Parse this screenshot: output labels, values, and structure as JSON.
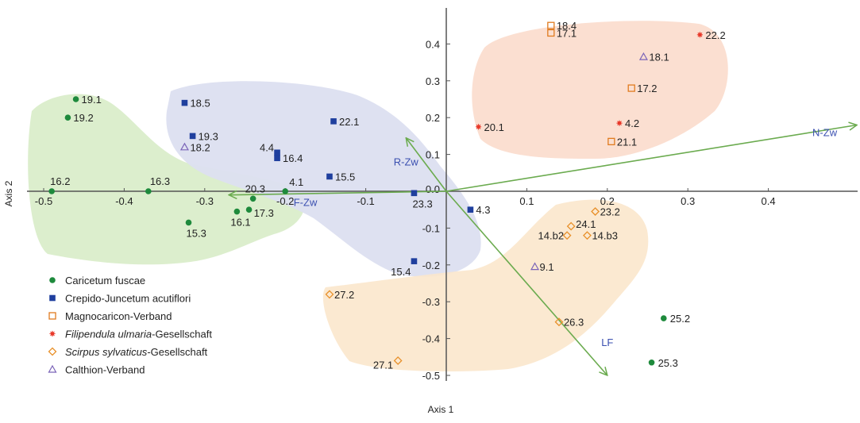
{
  "chart_data": {
    "type": "scatter",
    "xlabel": "Axis 1",
    "ylabel": "Axis 2",
    "xlim": [
      -0.5,
      0.5
    ],
    "ylim": [
      -0.5,
      0.5
    ],
    "x_ticks": [
      -0.5,
      -0.4,
      -0.3,
      -0.2,
      -0.1,
      0.1,
      0.2,
      0.3,
      0.4
    ],
    "x_tick_labels": [
      "-0.5",
      "-0.4",
      "-0.3",
      "-0.2",
      "-0.1",
      "0.1",
      "0.2",
      "0.3",
      "0.4"
    ],
    "y_ticks": [
      0.4,
      0.3,
      0.2,
      0.1,
      -0.1,
      -0.2,
      -0.3,
      -0.4,
      -0.5
    ],
    "y_tick_labels": [
      "0.4",
      "0.3",
      "0.2",
      "0.1",
      "-0.1",
      "-0.2",
      "-0.3",
      "-0.4",
      "-0.5"
    ],
    "origin_label": "0.0",
    "grid": false,
    "legend_position": "bottom-left",
    "series": [
      {
        "name": "Caricetum fuscae",
        "marker": "circle",
        "color": "#1e8a3c",
        "hull_color": "#d6ebc4",
        "points": [
          {
            "label": "19.1",
            "x": -0.46,
            "y": 0.25
          },
          {
            "label": "19.2",
            "x": -0.47,
            "y": 0.2
          },
          {
            "label": "16.2",
            "x": -0.49,
            "y": 0.0
          },
          {
            "label": "16.3",
            "x": -0.37,
            "y": 0.0
          },
          {
            "label": "20.3",
            "x": -0.24,
            "y": -0.02
          },
          {
            "label": "4.1",
            "x": -0.2,
            "y": 0.0
          },
          {
            "label": "17.3",
            "x": -0.245,
            "y": -0.05
          },
          {
            "label": "16.1",
            "x": -0.26,
            "y": -0.055
          },
          {
            "label": "15.3",
            "x": -0.32,
            "y": -0.085
          },
          {
            "label": "25.2",
            "x": 0.27,
            "y": -0.345
          },
          {
            "label": "25.3",
            "x": 0.255,
            "y": -0.465
          }
        ]
      },
      {
        "name": "Crepido-Juncetum acutiflori",
        "marker": "square",
        "color": "#1f3f9e",
        "hull_color": "#dcdff0",
        "points": [
          {
            "label": "18.5",
            "x": -0.325,
            "y": 0.24
          },
          {
            "label": "19.3",
            "x": -0.315,
            "y": 0.15
          },
          {
            "label": "22.1",
            "x": -0.14,
            "y": 0.19
          },
          {
            "label": "4.4",
            "x": -0.21,
            "y": 0.105
          },
          {
            "label": "16.4",
            "x": -0.21,
            "y": 0.09
          },
          {
            "label": "15.5",
            "x": -0.145,
            "y": 0.04
          },
          {
            "label": "23.3",
            "x": -0.04,
            "y": -0.005
          },
          {
            "label": "4.3",
            "x": 0.03,
            "y": -0.05
          },
          {
            "label": "15.4",
            "x": -0.04,
            "y": -0.19
          }
        ]
      },
      {
        "name": "Magnocaricon-Verband",
        "marker": "open-square",
        "color": "#e07b1f",
        "hull_color": "#fbdccc",
        "points": [
          {
            "label": "18.4",
            "x": 0.13,
            "y": 0.45
          },
          {
            "label": "17.1",
            "x": 0.13,
            "y": 0.43
          },
          {
            "label": "17.2",
            "x": 0.23,
            "y": 0.28
          },
          {
            "label": "21.1",
            "x": 0.205,
            "y": 0.135
          }
        ]
      },
      {
        "name": "Filipendula ulmaria-Gesellschaft",
        "name_italic_part": "Filipendula ulmaria",
        "name_rest": "-Gesellschaft",
        "marker": "star",
        "color": "#e8392a",
        "points": [
          {
            "label": "22.2",
            "x": 0.315,
            "y": 0.425
          },
          {
            "label": "20.1",
            "x": 0.04,
            "y": 0.175
          },
          {
            "label": "4.2",
            "x": 0.215,
            "y": 0.185
          }
        ]
      },
      {
        "name": "Scirpus sylvaticus-Gesellschaft",
        "name_italic_part": "Scirpus sylvaticus",
        "name_rest": "-Gesellschaft",
        "marker": "open-diamond",
        "color": "#e8902a",
        "hull_color": "#fbe7cc",
        "points": [
          {
            "label": "23.2",
            "x": 0.185,
            "y": -0.055
          },
          {
            "label": "24.1",
            "x": 0.155,
            "y": -0.095
          },
          {
            "label": "14.b2",
            "x": 0.15,
            "y": -0.12
          },
          {
            "label": "14.b3",
            "x": 0.175,
            "y": -0.12
          },
          {
            "label": "27.2",
            "x": -0.145,
            "y": -0.28
          },
          {
            "label": "26.3",
            "x": 0.14,
            "y": -0.355
          },
          {
            "label": "27.1",
            "x": -0.06,
            "y": -0.46
          }
        ]
      },
      {
        "name": "Calthion-Verband",
        "marker": "open-triangle",
        "color": "#7a63b8",
        "points": [
          {
            "label": "18.1",
            "x": 0.245,
            "y": 0.365
          },
          {
            "label": "18.2",
            "x": -0.325,
            "y": 0.12
          },
          {
            "label": "9.1",
            "x": 0.11,
            "y": -0.205
          }
        ]
      }
    ],
    "vectors": [
      {
        "label": "N-Zw",
        "x": 0.51,
        "y": 0.18
      },
      {
        "label": "R-Zw",
        "x": -0.05,
        "y": 0.145
      },
      {
        "label": "F-Zw",
        "x": -0.27,
        "y": -0.01
      },
      {
        "label": "LF",
        "x": 0.2,
        "y": -0.5
      }
    ],
    "vector_color": "#6bab4f",
    "vector_label_color": "#3a4fb0"
  }
}
